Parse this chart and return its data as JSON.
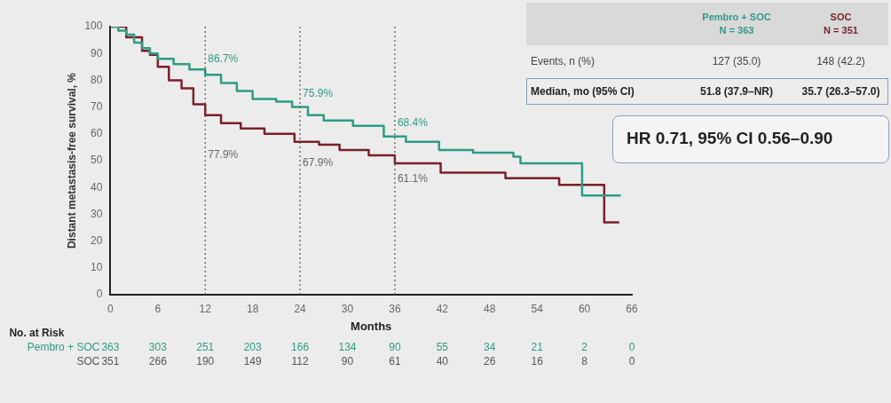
{
  "chart_data": {
    "type": "step",
    "xlabel": "Months",
    "ylabel": "Distant metastasis-free survival, %",
    "xlim": [
      0,
      66
    ],
    "xticks": [
      0,
      6,
      12,
      18,
      24,
      30,
      36,
      42,
      48,
      54,
      60,
      66
    ],
    "ylim": [
      0,
      100
    ],
    "yticks": [
      0,
      10,
      20,
      30,
      40,
      50,
      60,
      70,
      80,
      90,
      100
    ],
    "grid": false,
    "legend": false,
    "ref_lines": [
      {
        "axis": "x",
        "value": 12,
        "color": "#555555",
        "line_style": "dotted"
      },
      {
        "axis": "x",
        "value": 24,
        "color": "#555555",
        "line_style": "dotted"
      },
      {
        "axis": "x",
        "value": 36,
        "color": "#555555",
        "line_style": "dotted"
      }
    ],
    "series": [
      {
        "color": "#2e9c84",
        "x": [
          0,
          1,
          2,
          3,
          4,
          5,
          6,
          8,
          10,
          12,
          14,
          16,
          18,
          21,
          23,
          25,
          27,
          30.7,
          34.6,
          37.4,
          41.6,
          45.9,
          51,
          51.9,
          59.7,
          64.6
        ],
        "values": [
          100,
          98.5,
          97,
          94,
          92,
          90,
          88,
          86,
          84,
          82,
          79,
          76,
          73,
          72,
          70,
          67,
          65,
          63,
          59,
          57,
          54,
          53,
          51.5,
          49,
          37,
          37
        ]
      },
      {
        "color": "#7a1f2a",
        "x": [
          0,
          2,
          4,
          5,
          6,
          7.4,
          9,
          10.5,
          12,
          14,
          16.5,
          19.5,
          23.3,
          26.4,
          29,
          32.7,
          36,
          41.8,
          50,
          56.8,
          62.5,
          64.4
        ],
        "values": [
          100,
          96,
          91,
          89.5,
          85,
          80,
          77,
          71,
          67,
          64,
          62,
          60,
          57,
          56,
          54,
          52,
          49,
          45.5,
          43.5,
          41,
          27,
          27
        ]
      }
    ],
    "annotations": [
      {
        "text": "86.7%",
        "x": 12,
        "y": 88
      },
      {
        "text": "75.9%",
        "x": 24,
        "y": 75
      },
      {
        "text": "68.4%",
        "x": 36,
        "y": 64
      },
      {
        "text": "77.9%",
        "x": 12,
        "y": 52
      },
      {
        "text": "67.9%",
        "x": 24,
        "y": 49
      },
      {
        "text": "61.1%",
        "x": 36,
        "y": 43
      },
      "No. at Risk",
      "Pembro + SOC",
      "SOC",
      "363",
      "303",
      "251",
      "203",
      "166",
      "134",
      "90",
      "55",
      "34",
      "21",
      "2",
      "0",
      "351",
      "266",
      "190",
      "149",
      "112",
      "90",
      "61",
      "40",
      "26",
      "16",
      "8",
      "0",
      "Pembro + SOC",
      "N = 363",
      "SOC",
      "N = 351",
      "Events, n (%)",
      "127 (35.0)",
      "148 (42.2)",
      "Median, mo (95% CI)",
      "51.8 (37.9–NR)",
      "35.7 (26.3–57.0)",
      "HR 0.71, 95% CI 0.56–0.90"
    ]
  }
}
